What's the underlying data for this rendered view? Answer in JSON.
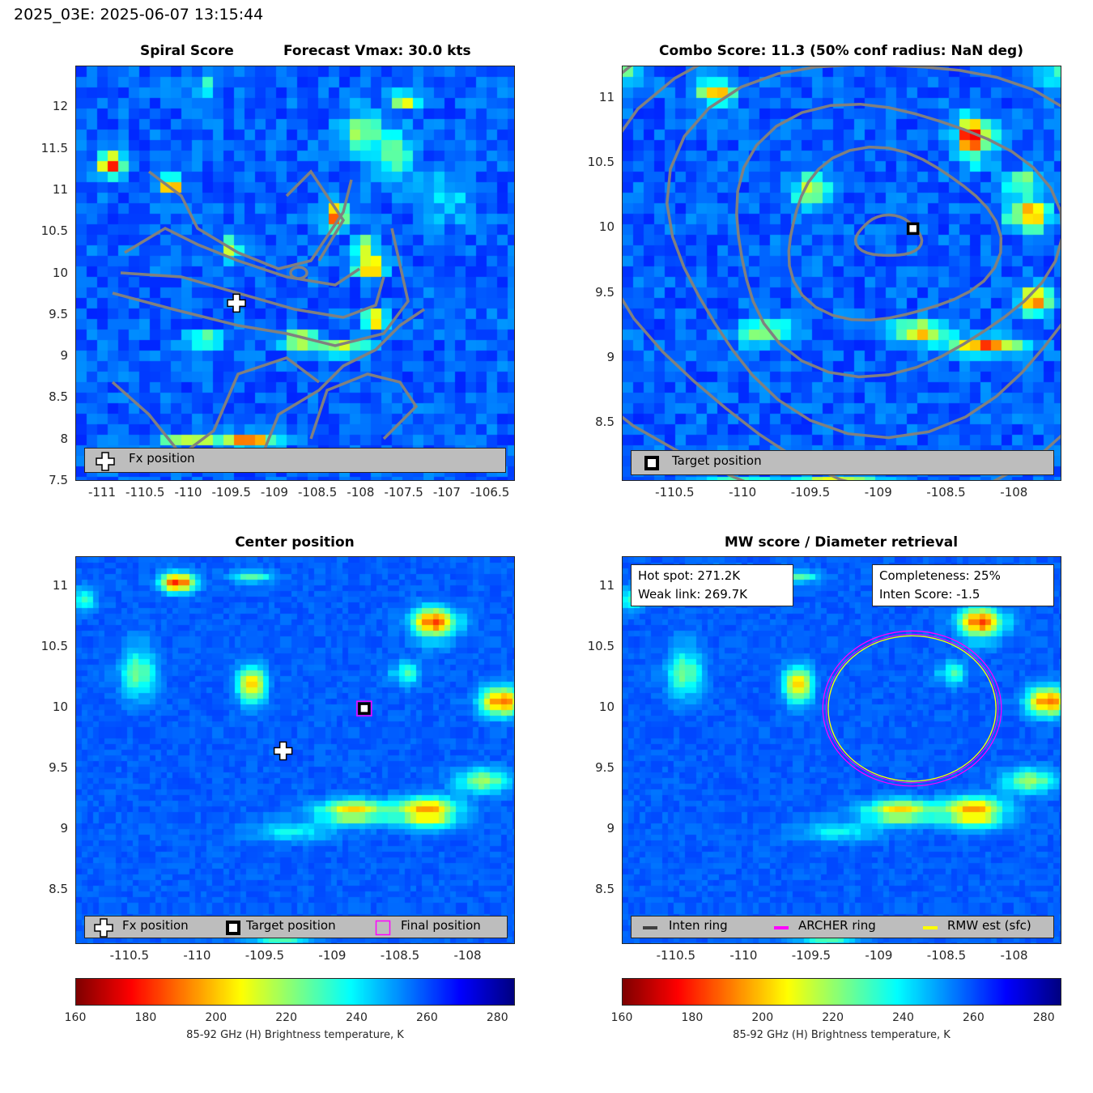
{
  "figure_title": "2025_03E: 2025-06-07 13:15:44",
  "chart_data": [
    {
      "type": "heatmap",
      "panel": "spiral",
      "title_left": "Spiral Score",
      "title_right": "Forecast Vmax: 30.0 kts",
      "xlim": [
        -111.31,
        -106.21
      ],
      "ylim": [
        7.5,
        12.5
      ],
      "xticks": [
        "-111",
        "-110.5",
        "-110",
        "-109.5",
        "-109",
        "-108.5",
        "-108",
        "-107.5",
        "-107",
        "-106.5"
      ],
      "xtick_values": [
        -111,
        -110.5,
        -110,
        -109.5,
        -109,
        -108.5,
        -108,
        -107.5,
        -107,
        -106.5
      ],
      "yticks": [
        "12",
        "11.5",
        "11",
        "10.5",
        "10",
        "9.5",
        "9",
        "8.5",
        "8",
        "7.5"
      ],
      "ytick_values": [
        12,
        11.5,
        11,
        10.5,
        10,
        9.5,
        9,
        8.5,
        8,
        7.5
      ],
      "contours": true,
      "markers": [
        {
          "type": "fx-position",
          "lon": -109.45,
          "lat": 9.65
        }
      ],
      "legend": [
        {
          "icon": "white-cross",
          "label": "Fx position"
        }
      ]
    },
    {
      "type": "heatmap",
      "panel": "combo",
      "title": "Combo Score: 11.3  (50% conf radius: NaN deg)",
      "xlim": [
        -110.89,
        -107.65
      ],
      "ylim": [
        8.05,
        11.25
      ],
      "xticks": [
        "-110.5",
        "-110",
        "-109.5",
        "-109",
        "-108.5",
        "-108"
      ],
      "xtick_values": [
        -110.5,
        -110,
        -109.5,
        -109,
        -108.5,
        -108
      ],
      "yticks": [
        "11",
        "10.5",
        "10",
        "9.5",
        "9",
        "8.5"
      ],
      "ytick_values": [
        11,
        10.5,
        10,
        9.5,
        9,
        8.5
      ],
      "contours": true,
      "markers": [
        {
          "type": "target-position",
          "lon": -108.75,
          "lat": 10.0
        }
      ],
      "legend": [
        {
          "icon": "black-square",
          "label": "Target position"
        }
      ]
    },
    {
      "type": "heatmap",
      "panel": "center",
      "title": "Center position",
      "xlim": [
        -110.9,
        -107.65
      ],
      "ylim": [
        8.05,
        11.25
      ],
      "xticks": [
        "-110.5",
        "-110",
        "-109.5",
        "-109",
        "-108.5",
        "-108"
      ],
      "xtick_values": [
        -110.5,
        -110,
        -109.5,
        -109,
        -108.5,
        -108
      ],
      "yticks": [
        "11",
        "10.5",
        "10",
        "9.5",
        "9",
        "8.5"
      ],
      "ytick_values": [
        11,
        10.5,
        10,
        9.5,
        9,
        8.5
      ],
      "markers": [
        {
          "type": "fx-position",
          "lon": -109.37,
          "lat": 9.65
        },
        {
          "type": "target-position",
          "lon": -108.77,
          "lat": 10.0
        },
        {
          "type": "final-position",
          "lon": -108.77,
          "lat": 10.0
        }
      ],
      "legend": [
        {
          "icon": "white-cross",
          "label": "Fx position"
        },
        {
          "icon": "black-square",
          "label": "Target position"
        },
        {
          "icon": "magenta-square",
          "label": "Final position"
        }
      ]
    },
    {
      "type": "heatmap",
      "panel": "mw",
      "title": "MW score / Diameter retrieval",
      "xlim": [
        -110.9,
        -107.65
      ],
      "ylim": [
        8.05,
        11.25
      ],
      "xticks": [
        "-110.5",
        "-110",
        "-109.5",
        "-109",
        "-108.5",
        "-108"
      ],
      "xtick_values": [
        -110.5,
        -110,
        -109.5,
        -109,
        -108.5,
        -108
      ],
      "yticks": [
        "11",
        "10.5",
        "10",
        "9.5",
        "9",
        "8.5"
      ],
      "ytick_values": [
        11,
        10.5,
        10,
        9.5,
        9,
        8.5
      ],
      "annotations": {
        "hot_spot": "Hot spot: 271.2K",
        "weak_link": "Weak link: 269.7K",
        "completeness": "Completeness: 25%",
        "inten_score": "Inten Score: -1.5"
      },
      "rings": [
        {
          "name": "ARCHER ring",
          "color": "#ff00ff",
          "lon": -108.76,
          "lat": 10.0,
          "r_lon": 0.66,
          "r_lat": 0.64
        },
        {
          "name": "RMW est (sfc)",
          "color": "#ffff00",
          "lon": -108.76,
          "lat": 10.0,
          "r_lon": 0.62,
          "r_lat": 0.6
        }
      ],
      "legend": [
        {
          "icon": "dark-line",
          "label": "Inten ring",
          "color": "#404040"
        },
        {
          "icon": "magenta-line",
          "label": "ARCHER ring",
          "color": "#ff00ff"
        },
        {
          "icon": "yellow-line",
          "label": "RMW est (sfc)",
          "color": "#ffff00"
        }
      ]
    }
  ],
  "colorbar": {
    "range": [
      160,
      285
    ],
    "ticks": [
      "160",
      "180",
      "200",
      "220",
      "240",
      "260",
      "280"
    ],
    "tick_values": [
      160,
      180,
      200,
      220,
      240,
      260,
      280
    ],
    "label": "85-92 GHz (H) Brightness temperature, K",
    "colormap": "jet-reversed"
  },
  "colors": {
    "contour": "#808080",
    "archer": "#ff00ff",
    "rmw": "#ffff00",
    "legend_bg": "#bdbdbd"
  }
}
